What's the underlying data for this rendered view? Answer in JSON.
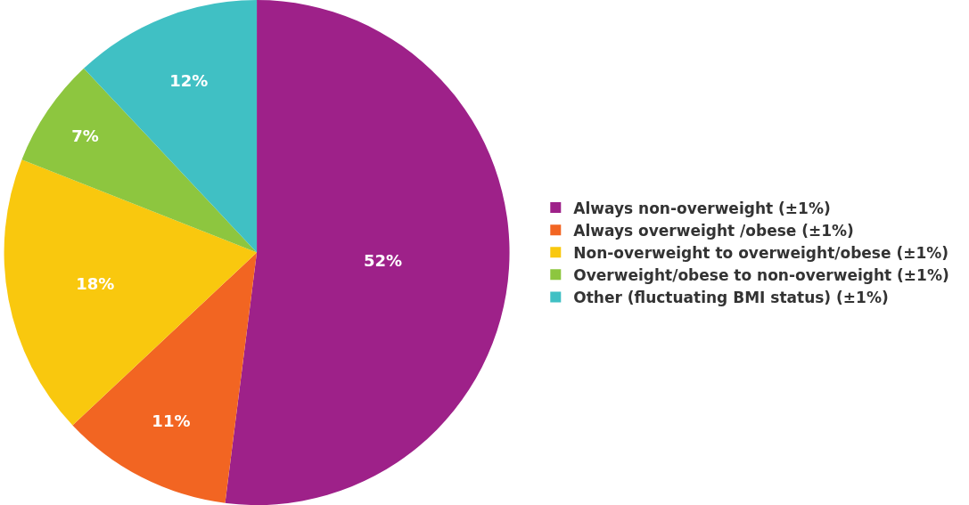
{
  "chart_data": {
    "type": "pie",
    "categories": [
      "Always non-overweight (±1%)",
      "Always overweight /obese (±1%)",
      "Non-overweight to overweight/obese (±1%)",
      "Overweight/obese to non-overweight (±1%)",
      "Other (fluctuating BMI status) (±1%)"
    ],
    "values": [
      52,
      11,
      18,
      7,
      12
    ],
    "colors": [
      "#9e2189",
      "#f26522",
      "#f9c80e",
      "#8dc63f",
      "#40c0c4"
    ],
    "value_labels": [
      "52%",
      "11%",
      "18%",
      "7%",
      "12%"
    ],
    "legend": "right"
  }
}
